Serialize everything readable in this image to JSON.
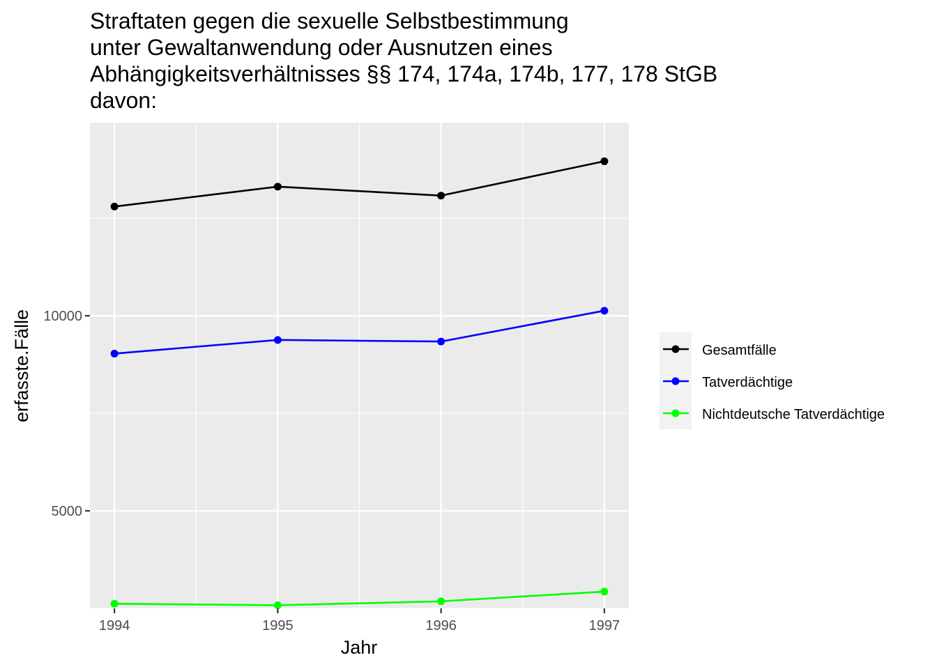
{
  "chart_data": {
    "type": "line",
    "title_lines": [
      "Straftaten gegen die sexuelle Selbstbestimmung",
      "unter Gewaltanwendung oder Ausnutzen eines",
      "Abhängigkeitsverhältnisses §§ 174, 174a, 174b, 177, 178 StGB",
      "davon:"
    ],
    "xlabel": "Jahr",
    "ylabel": "erfasste.Fälle",
    "x": [
      1994,
      1995,
      1996,
      1997
    ],
    "x_tick_labels": [
      "1994",
      "1995",
      "1996",
      "1997"
    ],
    "y_ticks": [
      5000,
      10000
    ],
    "y_tick_labels": [
      "5000",
      "10000"
    ],
    "xlim": [
      1993.85,
      1997.15
    ],
    "ylim": [
      2500,
      14950
    ],
    "grid": true,
    "legend_position": "right",
    "series": [
      {
        "name": "Gesamtfälle",
        "color": "#000000",
        "values": [
          12800,
          13310,
          13080,
          13960
        ]
      },
      {
        "name": "Tatverdächtige",
        "color": "#0000ff",
        "values": [
          9030,
          9380,
          9340,
          10130
        ]
      },
      {
        "name": "Nichtdeutsche Tatverdächtige",
        "color": "#00ff00",
        "values": [
          2620,
          2580,
          2680,
          2930
        ]
      }
    ]
  }
}
